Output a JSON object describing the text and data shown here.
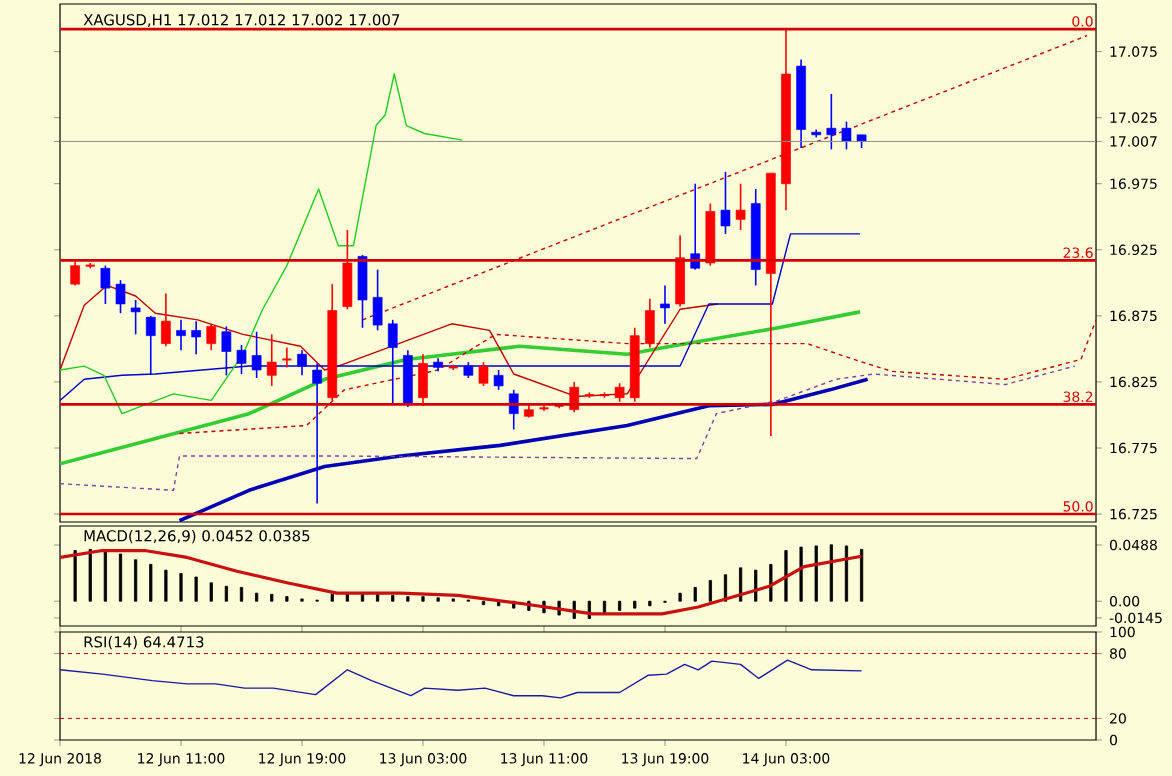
{
  "chart_data": [
    {
      "type": "candlestick",
      "title": "XAGUSD,H1  17.012 17.012 17.002 17.007",
      "x": [
        "2018-06-12T04:00",
        "2018-06-12T05:00",
        "2018-06-12T06:00",
        "2018-06-12T07:00",
        "2018-06-12T08:00",
        "2018-06-12T09:00",
        "2018-06-12T10:00",
        "2018-06-12T11:00",
        "2018-06-12T12:00",
        "2018-06-12T13:00",
        "2018-06-12T14:00",
        "2018-06-12T15:00",
        "2018-06-12T16:00",
        "2018-06-12T17:00",
        "2018-06-12T18:00",
        "2018-06-12T19:00",
        "2018-06-12T20:00",
        "2018-06-12T21:00",
        "2018-06-12T22:00",
        "2018-06-12T23:00",
        "2018-06-13T00:00",
        "2018-06-13T01:00",
        "2018-06-13T02:00",
        "2018-06-13T03:00",
        "2018-06-13T04:00",
        "2018-06-13T05:00",
        "2018-06-13T06:00",
        "2018-06-13T07:00",
        "2018-06-13T08:00",
        "2018-06-13T09:00",
        "2018-06-13T10:00",
        "2018-06-13T11:00",
        "2018-06-13T12:00",
        "2018-06-13T13:00",
        "2018-06-13T14:00",
        "2018-06-13T15:00",
        "2018-06-13T16:00",
        "2018-06-13T17:00",
        "2018-06-13T18:00",
        "2018-06-13T19:00",
        "2018-06-13T20:00",
        "2018-06-13T21:00",
        "2018-06-13T22:00",
        "2018-06-13T23:00",
        "2018-06-14T00:00",
        "2018-06-14T01:00",
        "2018-06-14T02:00",
        "2018-06-14T03:00",
        "2018-06-14T04:00",
        "2018-06-14T05:00",
        "2018-06-14T06:00",
        "2018-06-14T07:00",
        "2018-06-14T08:00"
      ],
      "ohlc": [
        [
          16.899,
          16.916,
          16.898,
          16.913
        ],
        [
          16.913,
          16.915,
          16.911,
          16.913
        ],
        [
          16.911,
          16.913,
          16.884,
          16.896
        ],
        [
          16.899,
          16.902,
          16.877,
          16.884
        ],
        [
          16.881,
          16.887,
          16.861,
          16.878
        ],
        [
          16.874,
          16.875,
          16.831,
          16.86
        ],
        [
          16.854,
          16.892,
          16.852,
          16.871
        ],
        [
          16.864,
          16.872,
          16.849,
          16.86
        ],
        [
          16.864,
          16.871,
          16.846,
          16.859
        ],
        [
          16.854,
          16.869,
          16.849,
          16.867
        ],
        [
          16.863,
          16.867,
          16.83,
          16.848
        ],
        [
          16.849,
          16.853,
          16.831,
          16.839
        ],
        [
          16.845,
          16.863,
          16.828,
          16.834
        ],
        [
          16.83,
          16.861,
          16.822,
          16.84
        ],
        [
          16.842,
          16.851,
          16.836,
          16.842
        ],
        [
          16.846,
          16.849,
          16.83,
          16.837
        ],
        [
          16.834,
          16.839,
          16.733,
          16.824
        ],
        [
          16.813,
          16.899,
          16.811,
          16.879
        ],
        [
          16.882,
          16.94,
          16.88,
          16.915
        ],
        [
          16.92,
          16.921,
          16.866,
          16.887
        ],
        [
          16.889,
          16.91,
          16.864,
          16.868
        ],
        [
          16.869,
          16.872,
          16.808,
          16.851
        ],
        [
          16.845,
          16.849,
          16.806,
          16.809
        ],
        [
          16.813,
          16.846,
          16.807,
          16.839
        ],
        [
          16.84,
          16.843,
          16.833,
          16.836
        ],
        [
          16.836,
          16.838,
          16.834,
          16.836
        ],
        [
          16.837,
          16.84,
          16.828,
          16.83
        ],
        [
          16.824,
          16.84,
          16.822,
          16.837
        ],
        [
          16.83,
          16.834,
          16.819,
          16.822
        ],
        [
          16.816,
          16.819,
          16.789,
          16.801
        ],
        [
          16.799,
          16.808,
          16.798,
          16.804
        ],
        [
          16.805,
          16.807,
          16.803,
          16.805
        ],
        [
          16.807,
          16.809,
          16.805,
          16.807
        ],
        [
          16.804,
          16.825,
          16.802,
          16.821
        ],
        [
          16.815,
          16.817,
          16.813,
          16.815
        ],
        [
          16.815,
          16.817,
          16.813,
          16.815
        ],
        [
          16.813,
          16.824,
          16.81,
          16.821
        ],
        [
          16.813,
          16.866,
          16.81,
          16.86
        ],
        [
          16.854,
          16.888,
          16.851,
          16.879
        ],
        [
          16.884,
          16.898,
          16.869,
          16.881
        ],
        [
          16.884,
          16.936,
          16.882,
          16.919
        ],
        [
          16.922,
          16.975,
          16.91,
          16.911
        ],
        [
          16.915,
          16.96,
          16.913,
          16.954
        ],
        [
          16.955,
          16.984,
          16.937,
          16.943
        ],
        [
          16.948,
          16.975,
          16.94,
          16.955
        ],
        [
          16.96,
          16.971,
          16.898,
          16.91
        ],
        [
          16.907,
          16.983,
          16.784,
          16.983
        ],
        [
          16.975,
          17.092,
          16.955,
          17.058
        ],
        [
          17.064,
          17.069,
          17.002,
          17.016
        ],
        [
          17.014,
          17.016,
          17.01,
          17.012
        ],
        [
          17.017,
          17.043,
          17.001,
          17.012
        ],
        [
          17.017,
          17.022,
          17.001,
          17.007
        ],
        [
          17.012,
          17.012,
          17.002,
          17.007
        ]
      ],
      "series": [
        {
          "type": "line",
          "color": "#33cc33",
          "line_style": "solid",
          "x": [
            "2018-06-12T03:00",
            "2018-06-12T15:30",
            "2018-06-12T20:30",
            "2018-06-13T01:54",
            "2018-06-13T09:24",
            "2018-06-13T16:30",
            "2018-06-13T19:24",
            "2018-06-14T02:30",
            "2018-06-14T07:54"
          ],
          "values": [
            16.763,
            16.801,
            16.827,
            16.842,
            16.852,
            16.846,
            16.852,
            16.866,
            16.878
          ]
        },
        {
          "type": "line",
          "color": "#0000b4",
          "line_style": "solid",
          "x": [
            "2018-06-12T10:54",
            "2018-06-12T15:30",
            "2018-06-12T20:30",
            "2018-06-13T01:30",
            "2018-06-13T08:06",
            "2018-06-13T16:30",
            "2018-06-13T21:54",
            "2018-06-14T02:06",
            "2018-06-14T05:54",
            "2018-06-14T08:24"
          ],
          "values": [
            16.72,
            16.743,
            16.761,
            16.769,
            16.777,
            16.792,
            16.807,
            16.808,
            16.819,
            16.827
          ]
        },
        {
          "type": "line",
          "color": "#c00000",
          "line_style": "solid",
          "x": [
            "2018-06-12T03:00",
            "2018-06-12T04:36",
            "2018-06-12T06:06",
            "2018-06-12T08:00",
            "2018-06-12T09:18",
            "2018-06-12T12:06",
            "2018-06-12T15:06",
            "2018-06-12T18:54",
            "2018-06-12T20:30",
            "2018-06-12T21:24",
            "2018-06-13T04:54",
            "2018-06-13T07:24",
            "2018-06-13T09:00",
            "2018-06-13T13:06",
            "2018-06-13T16:30",
            "2018-06-13T20:00",
            "2018-06-13T22:30"
          ],
          "values": [
            16.834,
            16.883,
            16.898,
            16.89,
            16.877,
            16.872,
            16.861,
            16.852,
            16.834,
            16.837,
            16.869,
            16.864,
            16.831,
            16.814,
            16.816,
            16.88,
            16.884
          ]
        },
        {
          "type": "line",
          "color": "#0000cc",
          "line_style": "solid",
          "x": [
            "2018-06-12T03:00",
            "2018-06-12T04:36",
            "2018-06-12T07:06",
            "2018-06-12T09:18",
            "2018-06-12T15:30",
            "2018-06-13T20:00",
            "2018-06-13T21:54",
            "2018-06-14T02:06",
            "2018-06-14T03:18",
            "2018-06-14T07:54"
          ],
          "values": [
            16.811,
            16.827,
            16.83,
            16.831,
            16.837,
            16.837,
            16.884,
            16.884,
            16.937,
            16.937
          ]
        },
        {
          "type": "line",
          "color": "#22cc22",
          "line_style": "solid",
          "x": [
            "2018-06-12T03:00",
            "2018-06-12T04:36",
            "2018-06-12T05:54",
            "2018-06-12T07:06",
            "2018-06-12T08:54",
            "2018-06-12T10:30",
            "2018-06-12T13:00",
            "2018-06-12T15:06",
            "2018-06-12T16:24",
            "2018-06-12T18:00",
            "2018-06-12T20:06",
            "2018-06-12T21:24",
            "2018-06-12T22:24",
            "2018-06-12T23:54",
            "2018-06-13T00:30",
            "2018-06-13T01:06",
            "2018-06-13T01:54",
            "2018-06-13T03:06",
            "2018-06-13T05:36"
          ],
          "values": [
            16.834,
            16.837,
            16.83,
            16.801,
            16.809,
            16.816,
            16.811,
            16.846,
            16.88,
            16.913,
            16.971,
            16.928,
            16.928,
            17.019,
            17.027,
            17.058,
            17.019,
            17.013,
            17.008
          ]
        },
        {
          "type": "line",
          "color": "#c00000",
          "line_style": "dashed",
          "x": [
            "2018-06-12T23:00",
            "2018-06-14T22:54"
          ],
          "values": [
            16.872,
            17.087
          ]
        },
        {
          "type": "line",
          "color": "#c00000",
          "line_style": "dashed",
          "x": [
            "2018-06-12T10:54",
            "2018-06-12T19:18",
            "2018-06-12T21:48",
            "2018-06-13T04:00",
            "2018-06-13T07:48",
            "2018-06-13T16:30",
            "2018-06-14T02:30",
            "2018-06-14T04:24",
            "2018-06-14T07:30",
            "2018-06-14T10:00",
            "2018-06-14T17:30",
            "2018-06-14T22:30",
            "2018-06-14T23:30"
          ],
          "values": [
            16.786,
            16.792,
            16.819,
            16.834,
            16.861,
            16.854,
            16.854,
            16.854,
            16.842,
            16.833,
            16.827,
            16.842,
            16.872
          ]
        },
        {
          "type": "line",
          "color": "#8040a0",
          "line_style": "dashed",
          "x": [
            "2018-06-12T03:00",
            "2018-06-12T10:30",
            "2018-06-12T10:54",
            "2018-06-12T20:30",
            "2018-06-13T21:06",
            "2018-06-13T22:24",
            "2018-06-14T02:30",
            "2018-06-14T06:18",
            "2018-06-14T08:48",
            "2018-06-14T17:30",
            "2018-06-14T22:06"
          ],
          "values": [
            16.748,
            16.743,
            16.769,
            16.769,
            16.767,
            16.801,
            16.811,
            16.827,
            16.831,
            16.823,
            16.837
          ]
        }
      ],
      "xlim": [
        "2018-06-12T03:00",
        "2018-06-14T23:30"
      ],
      "ylim": [
        16.719,
        17.111
      ],
      "yticks": [
        16.725,
        16.775,
        16.825,
        16.875,
        16.925,
        16.975,
        {
          "value": 17.007,
          "label": "17.007"
        },
        17.025,
        17.075
      ],
      "tick_labels": "y",
      "ref_lines": [
        {
          "axis": "y",
          "value": 17.092,
          "color": "#d40000"
        },
        {
          "axis": "y",
          "value": 16.917,
          "color": "#d40000"
        },
        {
          "axis": "y",
          "value": 16.808,
          "color": "#d40000"
        },
        {
          "axis": "y",
          "value": 16.725,
          "color": "#d40000"
        },
        {
          "axis": "y",
          "value": 17.007,
          "color": "#8c8c8c",
          "line_style": "solid"
        }
      ],
      "annotations": [
        "0.0",
        "23.6",
        "38.2",
        "50.0"
      ]
    },
    {
      "type": "bar",
      "title": "MACD(12,26,9) 0.0452 0.0385",
      "x": [
        "2018-06-12T04:00",
        "2018-06-12T05:00",
        "2018-06-12T06:00",
        "2018-06-12T07:00",
        "2018-06-12T08:00",
        "2018-06-12T09:00",
        "2018-06-12T10:00",
        "2018-06-12T11:00",
        "2018-06-12T12:00",
        "2018-06-12T13:00",
        "2018-06-12T14:00",
        "2018-06-12T15:00",
        "2018-06-12T16:00",
        "2018-06-12T17:00",
        "2018-06-12T18:00",
        "2018-06-12T19:00",
        "2018-06-12T20:00",
        "2018-06-12T21:00",
        "2018-06-12T22:00",
        "2018-06-12T23:00",
        "2018-06-13T00:00",
        "2018-06-13T01:00",
        "2018-06-13T02:00",
        "2018-06-13T03:00",
        "2018-06-13T04:00",
        "2018-06-13T05:00",
        "2018-06-13T06:00",
        "2018-06-13T07:00",
        "2018-06-13T08:00",
        "2018-06-13T09:00",
        "2018-06-13T10:00",
        "2018-06-13T11:00",
        "2018-06-13T12:00",
        "2018-06-13T13:00",
        "2018-06-13T14:00",
        "2018-06-13T15:00",
        "2018-06-13T16:00",
        "2018-06-13T17:00",
        "2018-06-13T18:00",
        "2018-06-13T19:00",
        "2018-06-13T20:00",
        "2018-06-13T21:00",
        "2018-06-13T22:00",
        "2018-06-13T23:00",
        "2018-06-14T00:00",
        "2018-06-14T01:00",
        "2018-06-14T02:00",
        "2018-06-14T03:00",
        "2018-06-14T04:00",
        "2018-06-14T05:00",
        "2018-06-14T06:00",
        "2018-06-14T07:00",
        "2018-06-14T08:00"
      ],
      "series": [
        {
          "color": "#000000",
          "values": [
            0.044,
            0.045,
            0.044,
            0.041,
            0.036,
            0.032,
            0.027,
            0.024,
            0.021,
            0.016,
            0.013,
            0.012,
            0.007,
            0.006,
            0.004,
            0.002,
            0.001,
            0.006,
            0.006,
            0.006,
            0.006,
            0.005,
            0.004,
            0.004,
            0.003,
            0.002,
            0.001,
            -0.003,
            -0.004,
            -0.006,
            -0.008,
            -0.01,
            -0.012,
            -0.015,
            -0.015,
            -0.011,
            -0.008,
            -0.006,
            -0.004,
            -0.001,
            0.007,
            0.012,
            0.018,
            0.023,
            0.029,
            0.027,
            0.032,
            0.044,
            0.047,
            0.048,
            0.049,
            0.048,
            0.045
          ]
        },
        {
          "type": "line",
          "color": "#c81010",
          "x": [
            "2018-06-12T03:00",
            "2018-06-12T05:48",
            "2018-06-12T08:36",
            "2018-06-12T11:24",
            "2018-06-12T14:42",
            "2018-06-12T18:00",
            "2018-06-12T21:18",
            "2018-06-13T01:30",
            "2018-06-13T05:18",
            "2018-06-13T09:30",
            "2018-06-13T14:12",
            "2018-06-13T18:48",
            "2018-06-13T21:12",
            "2018-06-14T01:54",
            "2018-06-14T04:12",
            "2018-06-14T08:00"
          ],
          "values": [
            0.038,
            0.044,
            0.044,
            0.038,
            0.026,
            0.016,
            0.007,
            0.007,
            0.005,
            -0.002,
            -0.011,
            -0.011,
            -0.005,
            0.013,
            0.03,
            0.039
          ]
        }
      ],
      "xlim": [
        "2018-06-12T03:00",
        "2018-06-14T23:30"
      ],
      "ylim": [
        -0.0215,
        0.0653
      ],
      "yticks": [
        -0.0145,
        {
          "value": 0,
          "label": "0.00"
        },
        0.0488
      ],
      "tick_labels": "y"
    },
    {
      "type": "line",
      "title": "RSI(14) 64.4713",
      "color": "#1a1aa0",
      "x": [
        "2018-06-12T03:00",
        "2018-06-12T05:48",
        "2018-06-12T09:06",
        "2018-06-12T11:24",
        "2018-06-12T13:18",
        "2018-06-12T15:12",
        "2018-06-12T17:06",
        "2018-06-12T19:54",
        "2018-06-12T22:00",
        "2018-06-12T23:36",
        "2018-06-13T02:12",
        "2018-06-13T03:06",
        "2018-06-13T05:18",
        "2018-06-13T07:06",
        "2018-06-13T09:00",
        "2018-06-13T10:54",
        "2018-06-13T12:06",
        "2018-06-13T13:12",
        "2018-06-13T16:00",
        "2018-06-13T17:54",
        "2018-06-13T19:06",
        "2018-06-13T20:18",
        "2018-06-13T21:12",
        "2018-06-13T22:06",
        "2018-06-14T00:00",
        "2018-06-14T01:12",
        "2018-06-14T03:06",
        "2018-06-14T04:42",
        "2018-06-14T08:00"
      ],
      "values": [
        65,
        61,
        55,
        52,
        52,
        48,
        48,
        42,
        65,
        55,
        41,
        48,
        46,
        48,
        41,
        41,
        39,
        44,
        44,
        60,
        61,
        70,
        65,
        73,
        70,
        57,
        74,
        65,
        64
      ],
      "xlim": [
        "2018-06-12T03:00",
        "2018-06-14T23:30"
      ],
      "ylim": [
        0,
        100
      ],
      "yticks": [
        0,
        20,
        80,
        100
      ],
      "xticks": [
        {
          "value": "2018-06-12T03:00",
          "label": "12 Jun 2018"
        },
        {
          "value": "2018-06-12T11:00",
          "label": "12 Jun 11:00"
        },
        {
          "value": "2018-06-12T19:00",
          "label": "12 Jun 19:00"
        },
        {
          "value": "2018-06-13T03:00",
          "label": "13 Jun 03:00"
        },
        {
          "value": "2018-06-13T11:00",
          "label": "13 Jun 11:00"
        },
        {
          "value": "2018-06-13T19:00",
          "label": "13 Jun 19:00"
        },
        {
          "value": "2018-06-14T03:00",
          "label": "14 Jun 03:00"
        }
      ],
      "ref_lines": [
        {
          "axis": "y",
          "value": 80,
          "color": "#c00000",
          "line_style": "dashed"
        },
        {
          "axis": "y",
          "value": 20,
          "color": "#c00000",
          "line_style": "dashed"
        }
      ]
    }
  ]
}
